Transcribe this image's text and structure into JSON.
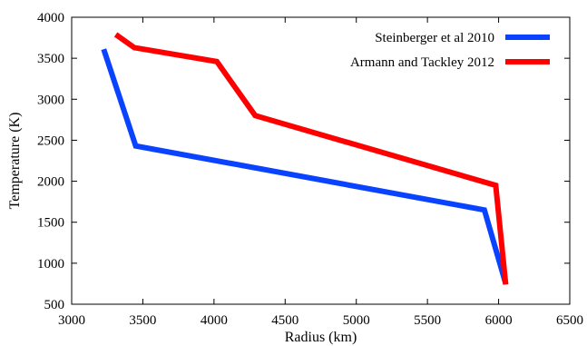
{
  "chart_data": {
    "type": "line",
    "xlabel": "Radius (km)",
    "ylabel": "Temperature (K)",
    "xlim": [
      3000,
      6500
    ],
    "ylim": [
      500,
      4000
    ],
    "xticks": [
      "3000",
      "3500",
      "4000",
      "4500",
      "5000",
      "5500",
      "6000",
      "6500"
    ],
    "yticks": [
      "500",
      "1000",
      "1500",
      "2000",
      "2500",
      "3000",
      "3500",
      "4000"
    ],
    "grid": false,
    "legend_position": "top-right",
    "series": [
      {
        "name": "Steinberger et al 2010",
        "color": "#0a43ff",
        "points": [
          [
            3225,
            3610
          ],
          [
            3450,
            2430
          ],
          [
            5900,
            1650
          ],
          [
            6050,
            750
          ]
        ]
      },
      {
        "name": "Armann and Tackley 2012",
        "color": "#ff0000",
        "points": [
          [
            3310,
            3790
          ],
          [
            3440,
            3630
          ],
          [
            4020,
            3460
          ],
          [
            4290,
            2800
          ],
          [
            5980,
            1950
          ],
          [
            6050,
            740
          ]
        ]
      }
    ]
  }
}
